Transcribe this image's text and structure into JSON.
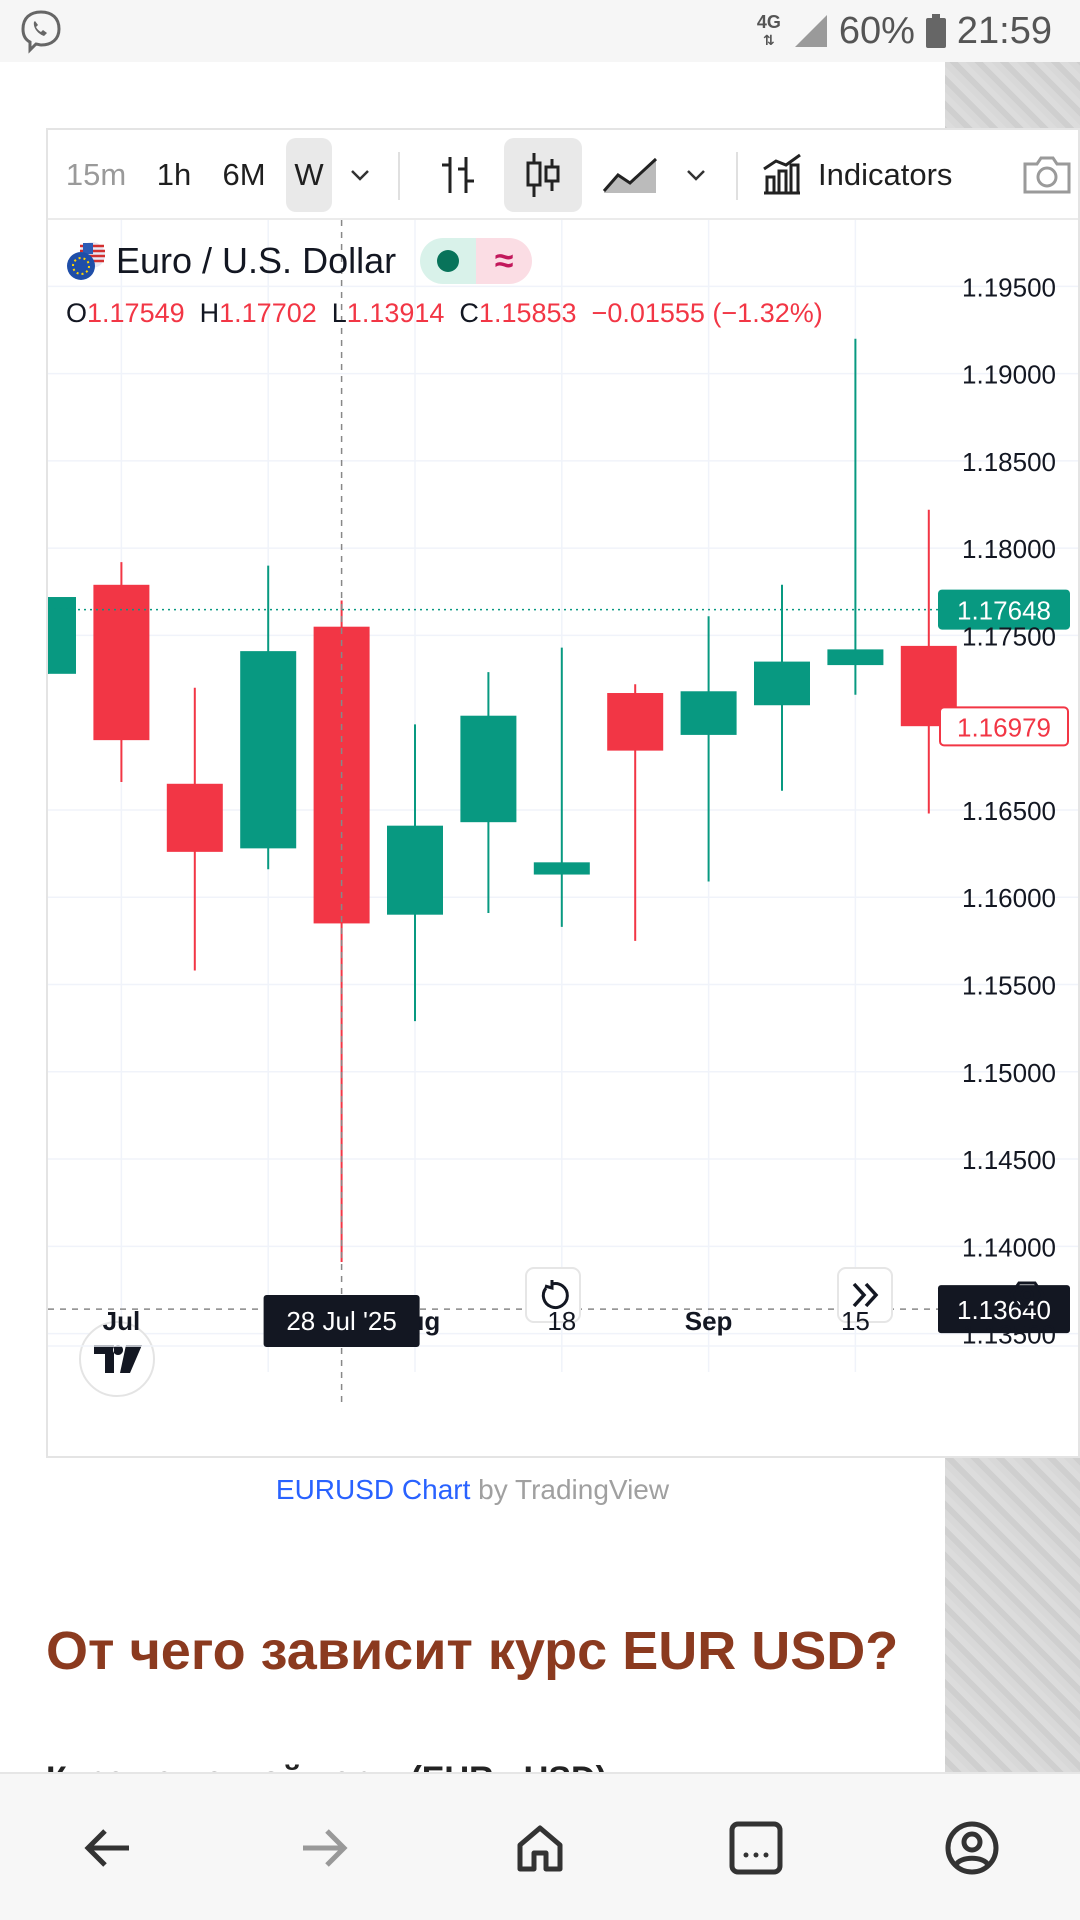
{
  "status_bar": {
    "network": "4G",
    "battery": "60%",
    "time": "21:59",
    "icons": [
      "viber-icon",
      "network-arrows-icon",
      "signal-icon",
      "battery-icon"
    ]
  },
  "toolbar": {
    "intervals": [
      "15m",
      "1h",
      "6M",
      "W"
    ],
    "selected_interval": "W",
    "indicators_label": "Indicators",
    "icons": [
      "chevron-down-icon",
      "bars-icon",
      "candles-icon",
      "area-chart-icon",
      "indicators-icon",
      "camera-icon"
    ]
  },
  "legend": {
    "symbol": "Euro / U.S. Dollar",
    "o_label": "O",
    "o_value": "1.17549",
    "h_label": "H",
    "h_value": "1.17702",
    "l_label": "L",
    "l_value": "1.13914",
    "c_label": "C",
    "c_value": "1.15853",
    "change": "−0.01555 (−1.32%)"
  },
  "chart_data": {
    "type": "candlestick",
    "ylim": [
      1.1328,
      1.1988
    ],
    "yticks": [
      "1.19500",
      "1.19000",
      "1.18500",
      "1.18000",
      "1.17500",
      "1.16500",
      "1.16000",
      "1.15500",
      "1.15000",
      "1.14500",
      "1.14000",
      "1.13500"
    ],
    "xticks": [
      {
        "label": "Jul",
        "index": 1
      },
      {
        "label": "Aug",
        "index": 5
      },
      {
        "label": "18",
        "index": 7
      },
      {
        "label": "Sep",
        "index": 9
      },
      {
        "label": "15",
        "index": 11
      }
    ],
    "candles": [
      {
        "o": 1.1728,
        "h": 1.1772,
        "l": 1.1728,
        "c": 1.1772
      },
      {
        "o": 1.1779,
        "h": 1.1792,
        "l": 1.1666,
        "c": 1.169
      },
      {
        "o": 1.1665,
        "h": 1.172,
        "l": 1.1558,
        "c": 1.1626
      },
      {
        "o": 1.1628,
        "h": 1.179,
        "l": 1.1616,
        "c": 1.1741
      },
      {
        "o": 1.1755,
        "h": 1.177,
        "l": 1.1391,
        "c": 1.1585
      },
      {
        "o": 1.159,
        "h": 1.1699,
        "l": 1.1529,
        "c": 1.1641
      },
      {
        "o": 1.1643,
        "h": 1.1729,
        "l": 1.1591,
        "c": 1.1704
      },
      {
        "o": 1.1613,
        "h": 1.1743,
        "l": 1.1583,
        "c": 1.162
      },
      {
        "o": 1.1717,
        "h": 1.1722,
        "l": 1.1575,
        "c": 1.1684
      },
      {
        "o": 1.1693,
        "h": 1.1761,
        "l": 1.1609,
        "c": 1.1718
      },
      {
        "o": 1.171,
        "h": 1.1779,
        "l": 1.1661,
        "c": 1.1735
      },
      {
        "o": 1.1733,
        "h": 1.192,
        "l": 1.1716,
        "c": 1.1742
      },
      {
        "o": 1.1744,
        "h": 1.1822,
        "l": 1.1648,
        "c": 1.1698
      }
    ],
    "last_price": "1.17648",
    "current_price": "1.16979",
    "crosshair_price": "1.13640",
    "crosshair_date": "28 Jul '25",
    "crosshair_index": 4,
    "up_color": "#089981",
    "down_color": "#f23645"
  },
  "footer": {
    "link": "EURUSD Chart",
    "by": " by TradingView"
  },
  "article": {
    "heading": "От чего зависит курс EUR USD?",
    "partial_line": "Курс валютной пары (EUR - USD)"
  },
  "nav": {
    "icons": [
      "back-icon",
      "forward-icon",
      "home-icon",
      "tabs-icon",
      "profile-icon"
    ]
  }
}
